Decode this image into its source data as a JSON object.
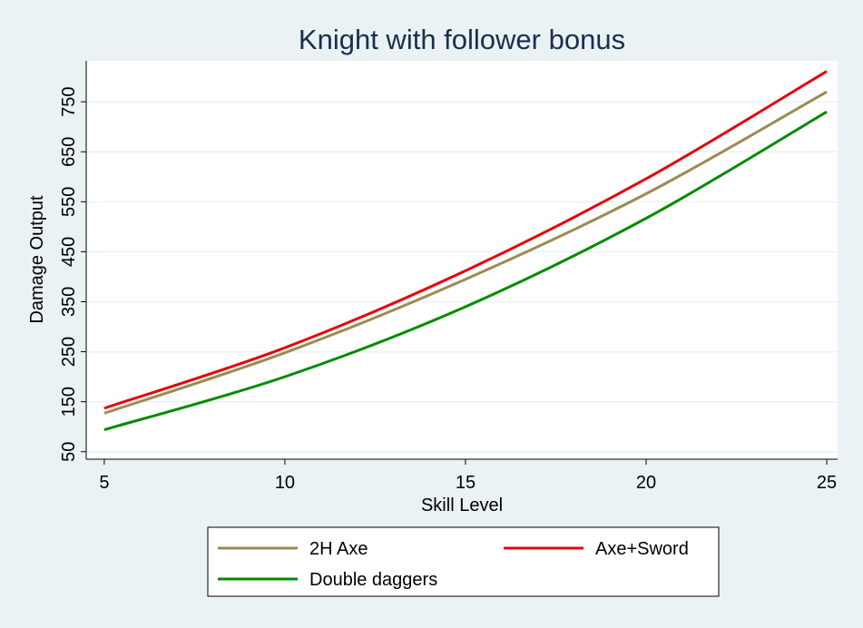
{
  "chart_data": {
    "type": "line",
    "title": "Knight with follower bonus",
    "xlabel": "Skill Level",
    "ylabel": "Damage Output",
    "xlim": [
      4.5,
      25.3
    ],
    "ylim": [
      35,
      832
    ],
    "xticks": [
      5,
      10,
      15,
      20,
      25
    ],
    "yticks": [
      50,
      150,
      250,
      350,
      450,
      550,
      650,
      750
    ],
    "grid": true,
    "legend_position": "bottom",
    "x": [
      5,
      10,
      15,
      20,
      25
    ],
    "series": [
      {
        "name": "2H Axe",
        "color": "#9b8b53",
        "values": [
          127,
          248,
          395,
          566,
          770
        ]
      },
      {
        "name": "Axe+Sword",
        "color": "#e3070a",
        "values": [
          137,
          258,
          412,
          596,
          811
        ]
      },
      {
        "name": "Double daggers",
        "color": "#038b03",
        "values": [
          94,
          200,
          340,
          517,
          730
        ]
      }
    ]
  }
}
